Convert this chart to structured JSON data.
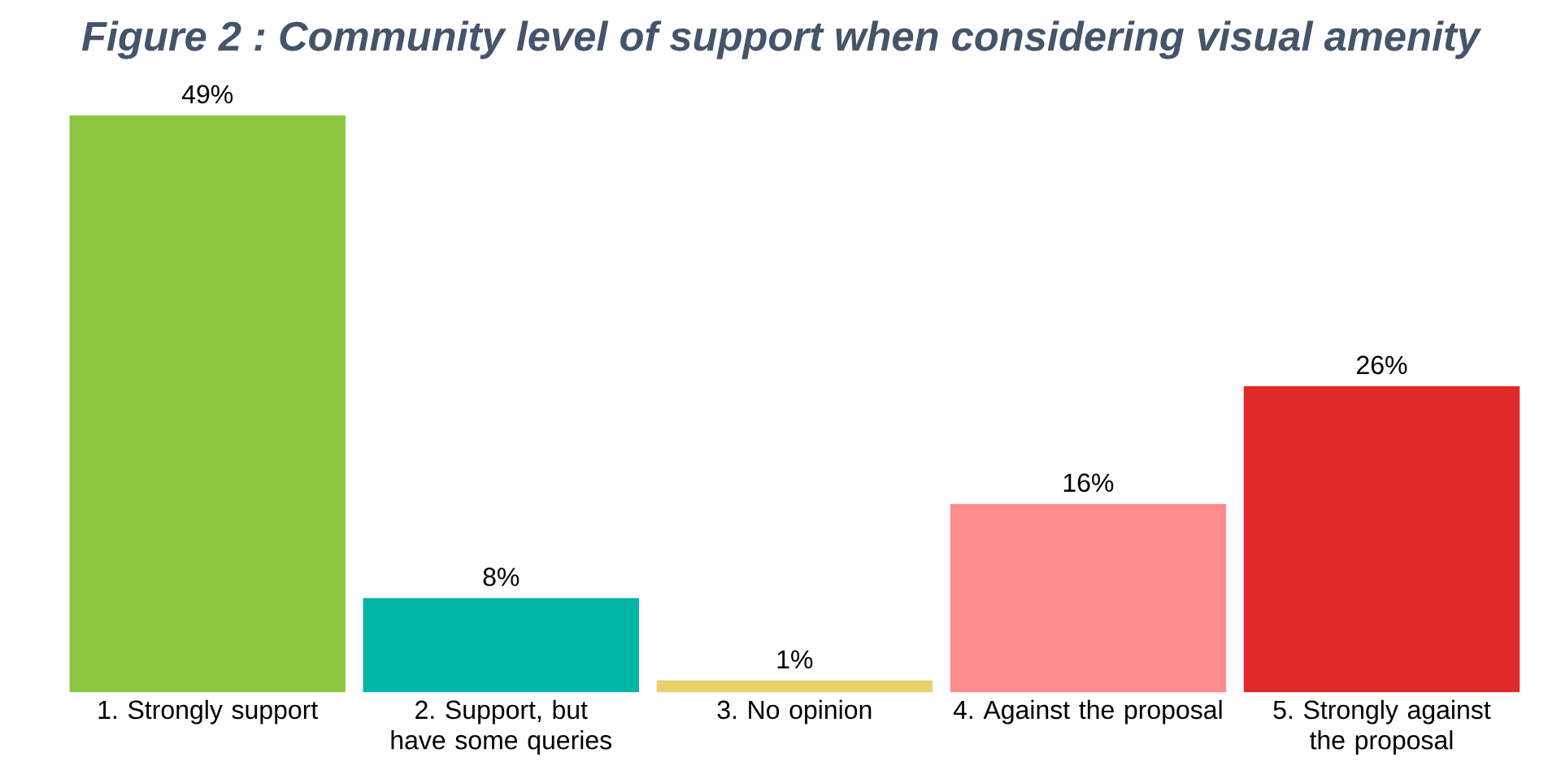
{
  "chart_data": {
    "type": "bar",
    "title": "Figure 2 : Community level of support when considering visual amenity",
    "categories": [
      "1. Strongly support",
      "2. Support, but have some queries",
      "3. No opinion",
      "4. Against the proposal",
      "5. Strongly against the proposal"
    ],
    "values": [
      49,
      8,
      1,
      16,
      26
    ],
    "value_labels": [
      "49%",
      "8%",
      "1%",
      "16%",
      "26%"
    ],
    "colors": [
      "#8dc63f",
      "#00b5a5",
      "#e8d06a",
      "#ff8c8c",
      "#e02a2a"
    ]
  }
}
